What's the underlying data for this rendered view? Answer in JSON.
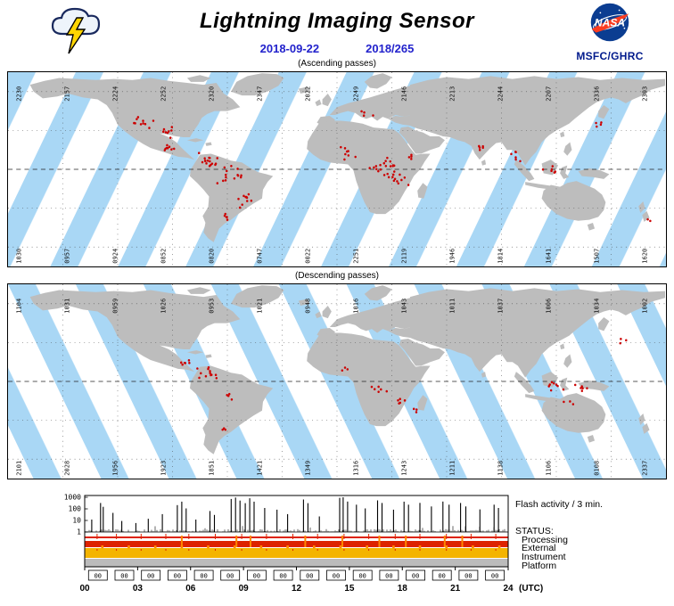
{
  "header": {
    "title": "Lightning Imaging Sensor",
    "date_iso": "2018-09-22",
    "date_doy": "2018/265",
    "logo": "NASA",
    "org": "MSFC/GHRC"
  },
  "maps": [
    {
      "caption": "(Ascending passes)",
      "direction": "ascending",
      "top_labels": [
        "2230",
        "2157",
        "2224",
        "2252",
        "2320",
        "2347",
        "2022",
        "2249",
        "2146",
        "2213",
        "2244",
        "2207",
        "2336",
        "2303"
      ],
      "bottom_labels": [
        "1030",
        "0957",
        "0924",
        "0852",
        "0820",
        "0747",
        "0022",
        "2251",
        "2119",
        "1946",
        "1814",
        "1641",
        "1507",
        "1620"
      ],
      "dot_clusters": [
        [
          150,
          52,
          10,
          16,
          10
        ],
        [
          176,
          62,
          8,
          12,
          8
        ],
        [
          176,
          78,
          8,
          10,
          6
        ],
        [
          222,
          90,
          16,
          14,
          8
        ],
        [
          244,
          108,
          14,
          16,
          12
        ],
        [
          258,
          130,
          10,
          14,
          10
        ],
        [
          236,
          148,
          5,
          8,
          6
        ],
        [
          368,
          84,
          8,
          14,
          8
        ],
        [
          412,
          98,
          22,
          18,
          12
        ],
        [
          430,
          112,
          8,
          10,
          8
        ],
        [
          394,
          44,
          4,
          12,
          6
        ],
        [
          440,
          86,
          4,
          8,
          5
        ],
        [
          516,
          76,
          5,
          8,
          6
        ],
        [
          560,
          84,
          6,
          10,
          8
        ],
        [
          592,
          100,
          6,
          12,
          6
        ],
        [
          648,
          52,
          4,
          8,
          6
        ],
        [
          700,
          150,
          2,
          5,
          4
        ]
      ]
    },
    {
      "caption": "(Descending passes)",
      "direction": "descending",
      "top_labels": [
        "1104",
        "1031",
        "0959",
        "1026",
        "0953",
        "1021",
        "0948",
        "1016",
        "1043",
        "1011",
        "1037",
        "1006",
        "1034",
        "1002"
      ],
      "bottom_labels": [
        "2101",
        "2028",
        "1956",
        "1923",
        "1851",
        "1421",
        "1349",
        "1316",
        "1243",
        "1211",
        "1138",
        "1106",
        "0108",
        "2337"
      ],
      "dot_clusters": [
        [
          196,
          78,
          6,
          10,
          6
        ],
        [
          218,
          92,
          12,
          14,
          8
        ],
        [
          246,
          118,
          4,
          8,
          6
        ],
        [
          236,
          150,
          3,
          6,
          5
        ],
        [
          404,
          106,
          6,
          12,
          8
        ],
        [
          426,
          120,
          5,
          10,
          6
        ],
        [
          446,
          128,
          3,
          6,
          4
        ],
        [
          600,
          104,
          8,
          14,
          6
        ],
        [
          628,
          106,
          6,
          10,
          5
        ],
        [
          614,
          122,
          3,
          8,
          4
        ],
        [
          672,
          58,
          3,
          6,
          4
        ],
        [
          370,
          90,
          3,
          8,
          5
        ]
      ]
    }
  ],
  "chart_data": {
    "type": "bar",
    "title": "Flash activity / 3 min.",
    "status_label": "STATUS:",
    "status_rows": [
      "Processing",
      "External",
      "Instrument",
      "Platform"
    ],
    "x_ticks": [
      "00",
      "03",
      "06",
      "09",
      "12",
      "15",
      "18",
      "21",
      "24"
    ],
    "x_unit": "(UTC)",
    "y_ticks": [
      "1000",
      "100",
      "10",
      "1"
    ],
    "y_scale": "log",
    "xlim": [
      0,
      24
    ],
    "ylim": [
      1,
      1000
    ],
    "spikes": [
      [
        0.4,
        12
      ],
      [
        0.9,
        320
      ],
      [
        1.05,
        150
      ],
      [
        1.6,
        45
      ],
      [
        2.1,
        9
      ],
      [
        2.9,
        6
      ],
      [
        3.6,
        14
      ],
      [
        4.4,
        35
      ],
      [
        5.25,
        210
      ],
      [
        5.5,
        420
      ],
      [
        5.75,
        110
      ],
      [
        6.3,
        12
      ],
      [
        7.1,
        65
      ],
      [
        7.35,
        30
      ],
      [
        8.3,
        720
      ],
      [
        8.55,
        950
      ],
      [
        8.8,
        520
      ],
      [
        9.1,
        310
      ],
      [
        9.35,
        820
      ],
      [
        9.6,
        420
      ],
      [
        10.2,
        120
      ],
      [
        10.9,
        85
      ],
      [
        11.5,
        35
      ],
      [
        12.4,
        640
      ],
      [
        12.65,
        310
      ],
      [
        13.3,
        22
      ],
      [
        14.45,
        900
      ],
      [
        14.65,
        1000
      ],
      [
        14.9,
        430
      ],
      [
        15.4,
        230
      ],
      [
        15.9,
        110
      ],
      [
        16.6,
        540
      ],
      [
        16.85,
        320
      ],
      [
        17.5,
        85
      ],
      [
        18.1,
        420
      ],
      [
        18.35,
        230
      ],
      [
        19.0,
        330
      ],
      [
        19.65,
        160
      ],
      [
        20.3,
        430
      ],
      [
        20.65,
        230
      ],
      [
        21.3,
        320
      ],
      [
        21.6,
        160
      ],
      [
        22.4,
        90
      ],
      [
        23.2,
        230
      ],
      [
        23.45,
        120
      ]
    ],
    "processing_marks": [
      0.7,
      1.8,
      3.2,
      4.6,
      5.9,
      7.4,
      8.9,
      10.3,
      11.8,
      13.2,
      14.7,
      16.1,
      17.6,
      19.0,
      20.5,
      21.9,
      23.3
    ],
    "external_spikes": [
      5.5,
      8.6,
      9.4,
      12.5,
      14.6,
      16.7,
      18.2,
      20.4,
      21.4
    ],
    "instrument_bumps": [
      1.0,
      2.5,
      4.0,
      5.5,
      7.0,
      8.5,
      10.0,
      11.5,
      13.0,
      14.5,
      16.0,
      17.5,
      19.0,
      20.5,
      22.0,
      23.5
    ],
    "box_labels": [
      "00",
      "00",
      "00",
      "00",
      "00",
      "00",
      "00",
      "00",
      "00",
      "00",
      "00",
      "00",
      "00",
      "00",
      "00",
      "00"
    ]
  },
  "colors": {
    "swath_ocean": "#a9d7f5",
    "swath_land": "#f6cd7e",
    "land": "#bdbdbd",
    "ocean": "#ffffff",
    "flash": "#cc0000",
    "date_text": "#2222cc",
    "org_text": "#001a8c",
    "spike": "#000000",
    "status_processing": "#dd2200",
    "status_external": "#dd2200",
    "status_instrument": "#f4b400",
    "status_platform": "#bbbbbb",
    "status_accent": "#ff8800",
    "nasa_blue": "#0b3d91",
    "nasa_red": "#fc3d21",
    "bolt_yellow": "#ffd500"
  }
}
